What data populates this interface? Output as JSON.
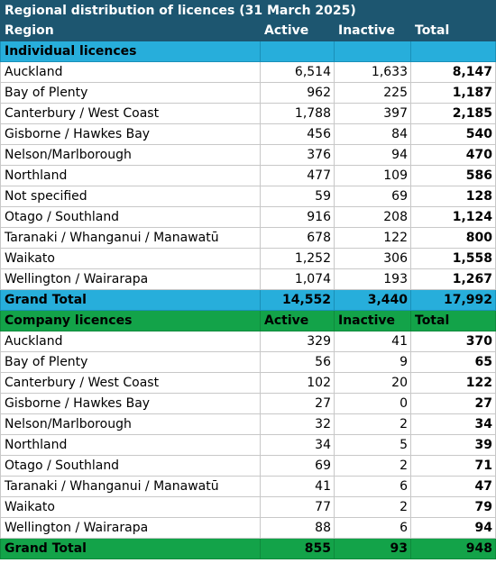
{
  "title": "Regional distribution of licences (31 March 2025)",
  "columns": [
    "Region",
    "Active",
    "Inactive",
    "Total"
  ],
  "individual": {
    "section_label": "Individual licences",
    "rows": [
      [
        "Auckland",
        "6,514",
        "1,633",
        "8,147"
      ],
      [
        "Bay of Plenty",
        "962",
        "225",
        "1,187"
      ],
      [
        "Canterbury / West Coast",
        "1,788",
        "397",
        "2,185"
      ],
      [
        "Gisborne / Hawkes Bay",
        "456",
        "84",
        "540"
      ],
      [
        "Nelson/Marlborough",
        "376",
        "94",
        "470"
      ],
      [
        "Northland",
        "477",
        "109",
        "586"
      ],
      [
        "Not specified",
        "59",
        "69",
        "128"
      ],
      [
        "Otago / Southland",
        "916",
        "208",
        "1,124"
      ],
      [
        "Taranaki / Whanganui / Manawatū",
        "678",
        "122",
        "800"
      ],
      [
        "Waikato",
        "1,252",
        "306",
        "1,558"
      ],
      [
        "Wellington / Wairarapa",
        "1,074",
        "193",
        "1,267"
      ]
    ],
    "grand_total": [
      "Grand Total",
      "14,552",
      "3,440",
      "17,992"
    ]
  },
  "company": {
    "section_label": "Company licences",
    "section_columns": [
      "Active",
      "Inactive",
      "Total"
    ],
    "rows": [
      [
        "Auckland",
        "329",
        "41",
        "370"
      ],
      [
        "Bay of Plenty",
        "56",
        "9",
        "65"
      ],
      [
        "Canterbury / West Coast",
        "102",
        "20",
        "122"
      ],
      [
        "Gisborne / Hawkes Bay",
        "27",
        "0",
        "27"
      ],
      [
        "Nelson/Marlborough",
        "32",
        "2",
        "34"
      ],
      [
        "Northland",
        "34",
        "5",
        "39"
      ],
      [
        "Otago / Southland",
        "69",
        "2",
        "71"
      ],
      [
        "Taranaki / Whanganui / Manawatū",
        "41",
        "6",
        "47"
      ],
      [
        "Waikato",
        "77",
        "2",
        "79"
      ],
      [
        "Wellington / Wairarapa",
        "88",
        "6",
        "94"
      ]
    ],
    "grand_total": [
      "Grand Total",
      "855",
      "93",
      "948"
    ]
  },
  "colors": {
    "header_bg": "#1d5670",
    "individual_bg": "#27aedb",
    "company_bg": "#13a349"
  }
}
